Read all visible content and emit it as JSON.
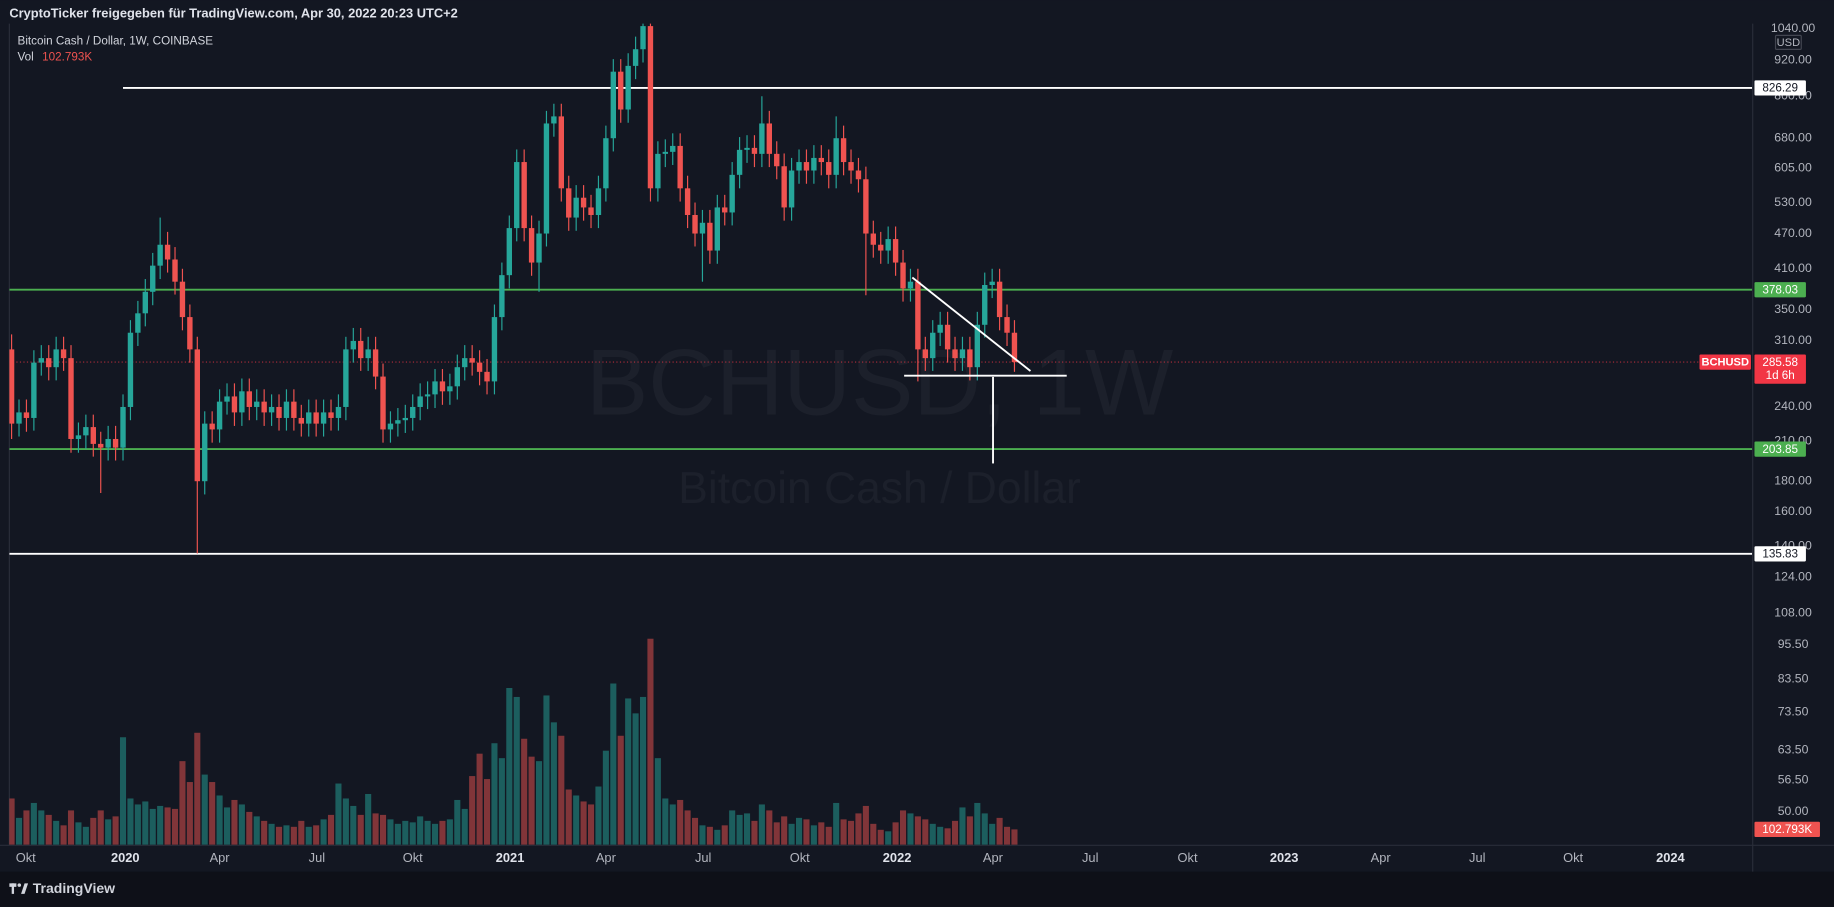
{
  "header": {
    "shared_by": "CryptoTicker freigegeben für TradingView.com, Apr 30, 2022 20:23 UTC+2"
  },
  "chart_data": {
    "type": "candlestick",
    "title": "Bitcoin Cash / Dollar, 1W, COINBASE",
    "watermark": {
      "symbol": "BCHUSD, 1W",
      "description": "Bitcoin Cash / Dollar"
    },
    "up_color": "#26a69a",
    "down_color": "#ef5350",
    "log_scale": true,
    "grid": false,
    "y_unit": "USD",
    "open": [
      300,
      225,
      235,
      230,
      285,
      290,
      280,
      300,
      290,
      212,
      215,
      222,
      208,
      205,
      212,
      205,
      240,
      320,
      345,
      375,
      415,
      450,
      425,
      390,
      340,
      300,
      180,
      225,
      220,
      245,
      250,
      235,
      255,
      240,
      245,
      235,
      240,
      230,
      245,
      230,
      225,
      235,
      225,
      235,
      230,
      240,
      300,
      310,
      290,
      300,
      270,
      220,
      225,
      228,
      230,
      240,
      250,
      252,
      265,
      255,
      260,
      280,
      290,
      285,
      275,
      265,
      340,
      400,
      480,
      620,
      480,
      420,
      470,
      720,
      740,
      560,
      500,
      540,
      520,
      505,
      560,
      680,
      880,
      760,
      900,
      960,
      1050,
      560,
      640,
      645,
      660,
      560,
      505,
      470,
      490,
      440,
      520,
      510,
      590,
      650,
      655,
      640,
      720,
      640,
      610,
      520,
      600,
      620,
      600,
      630,
      620,
      590,
      680,
      620,
      600,
      580,
      470,
      450,
      440,
      460,
      420,
      380,
      390,
      300,
      290,
      320,
      330,
      300,
      290,
      300,
      280,
      330,
      385,
      390,
      340,
      320
    ],
    "high": [
      318,
      247,
      247,
      299,
      305,
      305,
      315,
      315,
      305,
      226,
      233,
      233,
      218,
      223,
      223,
      252,
      336,
      362,
      394,
      436,
      500,
      473,
      446,
      410,
      357,
      315,
      236,
      236,
      257,
      263,
      263,
      268,
      268,
      257,
      257,
      252,
      252,
      257,
      257,
      242,
      247,
      247,
      247,
      247,
      252,
      315,
      326,
      326,
      315,
      315,
      284,
      236,
      239,
      242,
      252,
      263,
      265,
      278,
      278,
      273,
      294,
      305,
      305,
      299,
      289,
      357,
      420,
      504,
      651,
      651,
      504,
      494,
      756,
      777,
      777,
      588,
      567,
      567,
      546,
      588,
      714,
      924,
      924,
      945,
      1008,
      1150,
      1103,
      672,
      677,
      693,
      693,
      588,
      530,
      515,
      515,
      546,
      546,
      620,
      683,
      688,
      688,
      800,
      756,
      672,
      641,
      630,
      651,
      651,
      662,
      662,
      651,
      740,
      714,
      651,
      630,
      609,
      494,
      473,
      483,
      483,
      441,
      410,
      410,
      315,
      336,
      347,
      347,
      315,
      315,
      315,
      347,
      404,
      410,
      410,
      357,
      336
    ],
    "low": [
      212,
      214,
      218,
      219,
      271,
      266,
      266,
      276,
      201,
      201,
      204,
      198,
      172,
      195,
      195,
      195,
      228,
      304,
      328,
      356,
      394,
      404,
      371,
      323,
      285,
      136,
      171,
      209,
      209,
      233,
      223,
      223,
      228,
      228,
      223,
      223,
      219,
      219,
      219,
      214,
      214,
      214,
      214,
      219,
      219,
      228,
      285,
      276,
      276,
      257,
      209,
      209,
      214,
      217,
      219,
      228,
      238,
      239,
      242,
      242,
      247,
      266,
      271,
      261,
      252,
      252,
      323,
      380,
      456,
      456,
      399,
      375,
      447,
      684,
      532,
      475,
      475,
      494,
      480,
      480,
      532,
      646,
      722,
      722,
      855,
      912,
      532,
      532,
      608,
      613,
      532,
      480,
      447,
      390,
      418,
      418,
      485,
      485,
      560,
      618,
      608,
      608,
      608,
      580,
      494,
      494,
      570,
      570,
      570,
      589,
      560,
      560,
      589,
      570,
      551,
      370,
      428,
      418,
      418,
      399,
      361,
      361,
      265,
      276,
      276,
      304,
      285,
      276,
      276,
      266,
      266,
      314,
      366,
      323,
      304,
      275
    ],
    "close": [
      225,
      235,
      230,
      285,
      290,
      280,
      300,
      290,
      212,
      215,
      222,
      208,
      205,
      212,
      205,
      240,
      320,
      345,
      375,
      415,
      450,
      425,
      390,
      340,
      300,
      180,
      225,
      220,
      245,
      250,
      235,
      255,
      240,
      245,
      235,
      240,
      230,
      245,
      230,
      225,
      235,
      225,
      235,
      230,
      240,
      300,
      310,
      290,
      300,
      270,
      220,
      225,
      228,
      230,
      240,
      250,
      252,
      265,
      255,
      260,
      280,
      290,
      285,
      275,
      265,
      340,
      400,
      480,
      620,
      480,
      420,
      470,
      720,
      740,
      560,
      500,
      540,
      520,
      505,
      560,
      680,
      880,
      760,
      900,
      960,
      1050,
      560,
      640,
      645,
      660,
      560,
      505,
      470,
      490,
      440,
      520,
      510,
      590,
      650,
      655,
      640,
      720,
      640,
      610,
      520,
      600,
      620,
      600,
      630,
      620,
      590,
      680,
      620,
      600,
      580,
      470,
      450,
      440,
      460,
      420,
      380,
      390,
      300,
      290,
      320,
      330,
      300,
      290,
      300,
      280,
      330,
      385,
      390,
      340,
      320,
      285.58
    ],
    "volume": {
      "name": "Vol",
      "ylim": [
        0,
        5500000
      ],
      "values": [
        310000,
        180000,
        230000,
        280000,
        230000,
        200000,
        160000,
        130000,
        230000,
        150000,
        120000,
        180000,
        230000,
        170000,
        190000,
        720000,
        310000,
        270000,
        290000,
        240000,
        260000,
        250000,
        240000,
        560000,
        420000,
        750000,
        470000,
        420000,
        330000,
        250000,
        300000,
        270000,
        220000,
        190000,
        160000,
        140000,
        120000,
        130000,
        120000,
        160000,
        120000,
        130000,
        170000,
        200000,
        410000,
        310000,
        260000,
        200000,
        340000,
        210000,
        200000,
        170000,
        140000,
        160000,
        150000,
        190000,
        160000,
        140000,
        160000,
        170000,
        300000,
        240000,
        460000,
        610000,
        440000,
        680000,
        580000,
        1050000,
        990000,
        710000,
        590000,
        560000,
        1000000,
        820000,
        730000,
        370000,
        330000,
        290000,
        270000,
        390000,
        630000,
        1080000,
        730000,
        980000,
        880000,
        990000,
        1380000,
        580000,
        310000,
        270000,
        300000,
        230000,
        180000,
        130000,
        120000,
        100000,
        130000,
        230000,
        200000,
        210000,
        160000,
        270000,
        230000,
        150000,
        190000,
        140000,
        180000,
        170000,
        130000,
        150000,
        120000,
        280000,
        170000,
        160000,
        210000,
        260000,
        140000,
        100000,
        90000,
        150000,
        230000,
        210000,
        190000,
        170000,
        140000,
        120000,
        110000,
        160000,
        250000,
        190000,
        280000,
        210000,
        140000,
        180000,
        120000,
        102793
      ],
      "value_labels": [
        null,
        null,
        null,
        null,
        null,
        null,
        null,
        null,
        null,
        null,
        null,
        null,
        null,
        null,
        null,
        null,
        null,
        null,
        null,
        null,
        null,
        null,
        null,
        null,
        null,
        null,
        null,
        null,
        null,
        null,
        null,
        null,
        null,
        null,
        null,
        null,
        null,
        null,
        null,
        null,
        null,
        null,
        null,
        null,
        null,
        null,
        null,
        null,
        null,
        null,
        null,
        null,
        null,
        null,
        null,
        null,
        null,
        null,
        null,
        null,
        null,
        null,
        null,
        null,
        null,
        null,
        null,
        null,
        null,
        null,
        null,
        null,
        null,
        null,
        null,
        null,
        null,
        null,
        null,
        null,
        null,
        null,
        null,
        null,
        null,
        null,
        null,
        null,
        null,
        null,
        null,
        null,
        null,
        null,
        null,
        null,
        null,
        null,
        null,
        null,
        null,
        null,
        null,
        null,
        null,
        null,
        null,
        null,
        null,
        null,
        null,
        null,
        null,
        null,
        null,
        null,
        null,
        null,
        null,
        null,
        null,
        null,
        null,
        null,
        null,
        null,
        null,
        null,
        null,
        null,
        null,
        null,
        null,
        null,
        null,
        "102.793K"
      ]
    },
    "ylim": [
      44,
      1060
    ],
    "yticks": [
      {
        "value": 1040,
        "label": "1040.00"
      },
      {
        "value": 920,
        "label": "920.00"
      },
      {
        "value": 800,
        "label": "800.00"
      },
      {
        "value": 680,
        "label": "680.00"
      },
      {
        "value": 605,
        "label": "605.00"
      },
      {
        "value": 530,
        "label": "530.00"
      },
      {
        "value": 470,
        "label": "470.00"
      },
      {
        "value": 410,
        "label": "410.00"
      },
      {
        "value": 350,
        "label": "350.00"
      },
      {
        "value": 310,
        "label": "310.00"
      },
      {
        "value": 240,
        "label": "240.00"
      },
      {
        "value": 210,
        "label": "210.00"
      },
      {
        "value": 180,
        "label": "180.00"
      },
      {
        "value": 160,
        "label": "160.00"
      },
      {
        "value": 140,
        "label": "140.00"
      },
      {
        "value": 124,
        "label": "124.00"
      },
      {
        "value": 108,
        "label": "108.00"
      },
      {
        "value": 95.5,
        "label": "95.50"
      },
      {
        "value": 83.5,
        "label": "83.50"
      },
      {
        "value": 73.5,
        "label": "73.50"
      },
      {
        "value": 63.5,
        "label": "63.50"
      },
      {
        "value": 56.5,
        "label": "56.50"
      },
      {
        "value": 50,
        "label": "50.00"
      }
    ],
    "xlim": [
      -0.3,
      234.3
    ],
    "xticks": [
      {
        "value": 1.9,
        "label": "Okt"
      },
      {
        "value": 15.3,
        "label": "2020"
      },
      {
        "value": 28,
        "label": "Apr"
      },
      {
        "value": 41.1,
        "label": "Jul"
      },
      {
        "value": 54,
        "label": "Okt"
      },
      {
        "value": 67.1,
        "label": "2021"
      },
      {
        "value": 80,
        "label": "Apr"
      },
      {
        "value": 93.1,
        "label": "Jul"
      },
      {
        "value": 106.1,
        "label": "Okt"
      },
      {
        "value": 119.2,
        "label": "2022"
      },
      {
        "value": 132.1,
        "label": "Apr"
      },
      {
        "value": 145.2,
        "label": "Jul"
      },
      {
        "value": 158.3,
        "label": "Okt"
      },
      {
        "value": 171.3,
        "label": "2023"
      },
      {
        "value": 184.3,
        "label": "Apr"
      },
      {
        "value": 197.3,
        "label": "Jul"
      },
      {
        "value": 210.2,
        "label": "Okt"
      },
      {
        "value": 223.3,
        "label": "2024"
      }
    ],
    "levels": [
      {
        "value": 826.29,
        "color": "#ffffff",
        "from": 15
      },
      {
        "value": 378.03,
        "color": "#4caf50"
      },
      {
        "value": 203.85,
        "color": "#4caf50"
      },
      {
        "value": 135.83,
        "color": "#ffffff"
      }
    ],
    "last_price": {
      "symbol": "BCHUSD",
      "countdown": "1d 6h",
      "color": "#f23645"
    }
  },
  "footer": {
    "brand": "TradingView"
  }
}
